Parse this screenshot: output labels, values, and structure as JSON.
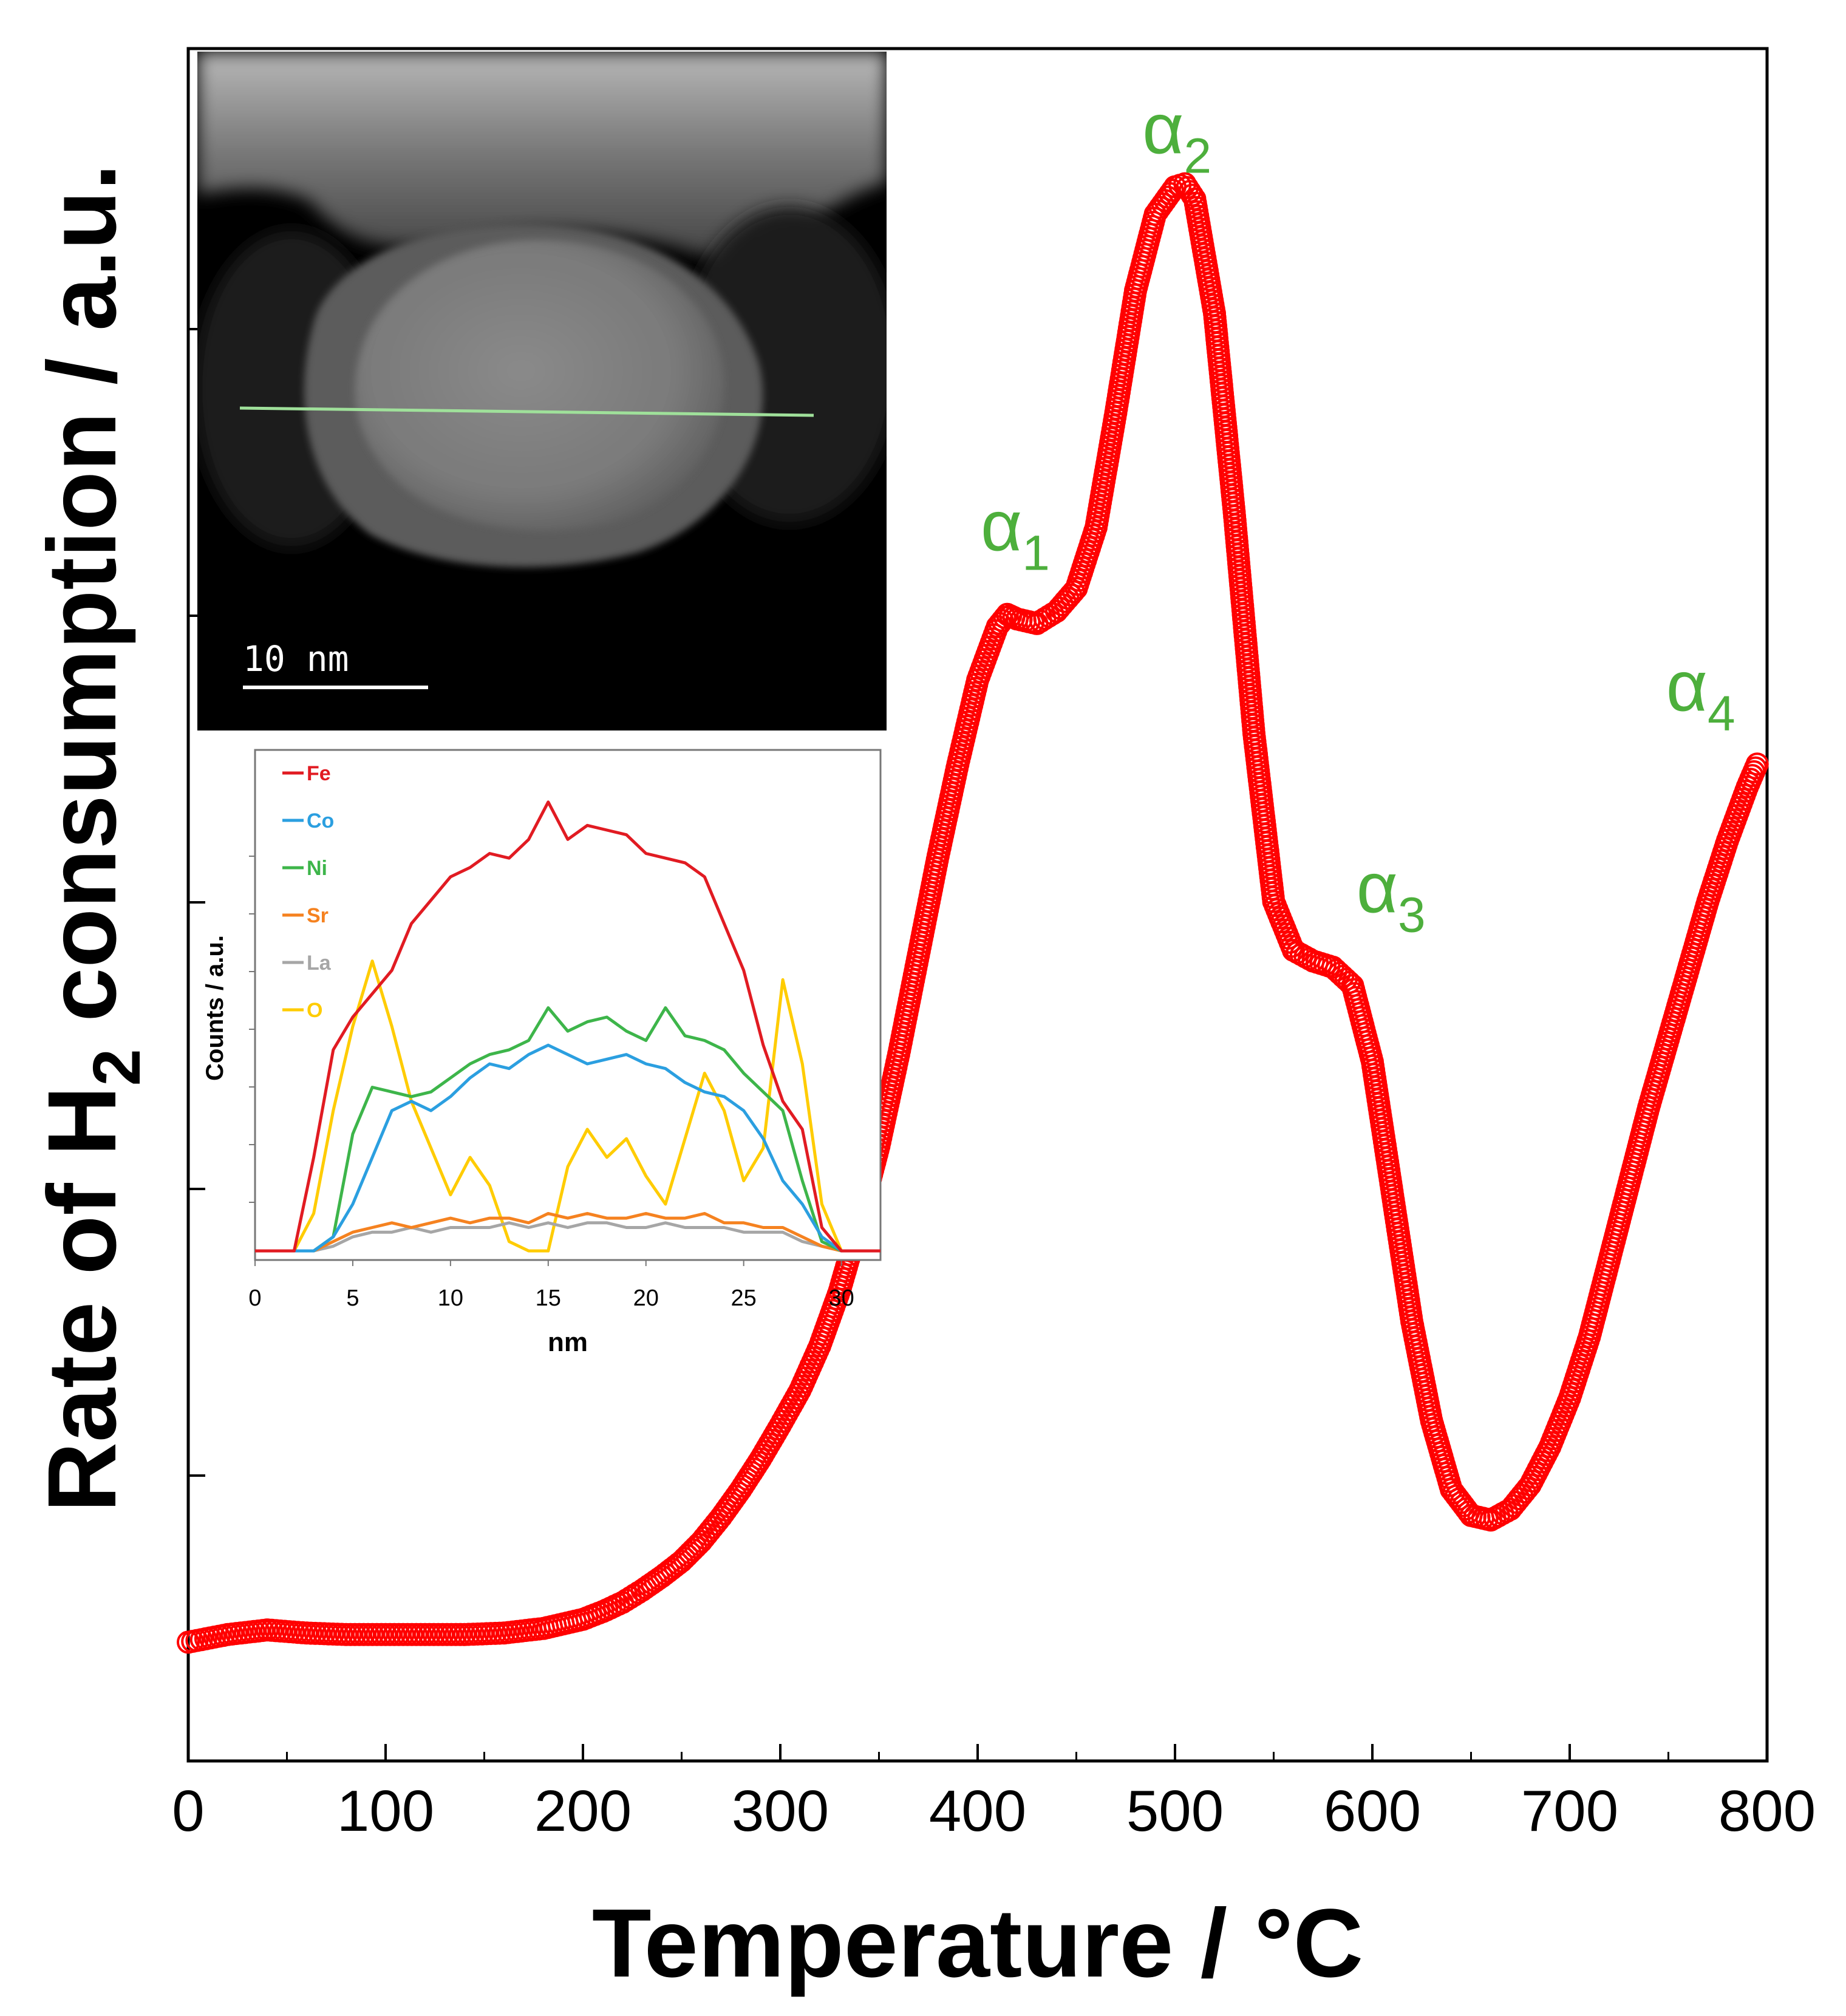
{
  "chart_data": [
    {
      "type": "scatter",
      "title": "",
      "xlabel": "Temperature / °C",
      "ylabel_parts": {
        "before": "Rate of H",
        "sub": "2",
        "after": " consumption / a.u."
      },
      "xlim": [
        0,
        800
      ],
      "ylim": [
        0,
        100
      ],
      "y_ticks_labeled": false,
      "x_ticks": [
        "0",
        "100",
        "200",
        "300",
        "400",
        "500",
        "600",
        "700",
        "800"
      ],
      "marker": "open-circle",
      "color": "#ff0000",
      "series": [
        {
          "x": [
            0,
            20,
            40,
            60,
            80,
            100,
            120,
            140,
            160,
            180,
            200,
            210,
            220,
            230,
            240,
            250,
            260,
            270,
            280,
            290,
            300,
            310,
            320,
            330,
            340,
            350,
            360,
            370,
            380,
            390,
            400,
            410,
            415,
            420,
            430,
            440,
            450,
            460,
            470,
            480,
            490,
            500,
            505,
            510,
            520,
            530,
            540,
            550,
            560,
            570,
            580,
            590,
            600,
            610,
            620,
            630,
            640,
            650,
            660,
            670,
            680,
            690,
            700,
            710,
            720,
            730,
            740,
            750,
            760,
            770,
            780,
            790,
            795
          ],
          "y": [
            4,
            4.5,
            4.8,
            4.6,
            4.5,
            4.5,
            4.5,
            4.5,
            4.6,
            4.9,
            5.5,
            6.0,
            6.6,
            7.4,
            8.3,
            9.3,
            10.6,
            12.2,
            14.0,
            16.0,
            18.2,
            20.5,
            23.4,
            27.0,
            31.5,
            36.5,
            42.5,
            49.0,
            55.5,
            61.5,
            67.0,
            70.5,
            71.3,
            71.0,
            70.7,
            71.5,
            73.0,
            77.0,
            84.5,
            92.5,
            97.5,
            99.3,
            99.5,
            98.5,
            91.0,
            78.0,
            63.5,
            52.5,
            49.3,
            48.6,
            48.2,
            47.0,
            42.0,
            33.5,
            25.0,
            18.5,
            14.0,
            12.3,
            12.0,
            12.7,
            14.3,
            16.8,
            20.0,
            24.0,
            29.0,
            34.0,
            39.0,
            43.5,
            48.0,
            52.5,
            56.5,
            60.0,
            61.5
          ]
        }
      ],
      "annotations": [
        {
          "label": "α",
          "sub": "1",
          "x": 420,
          "y": 72.5
        },
        {
          "label": "α",
          "sub": "2",
          "x": 505,
          "y": 100.5
        },
        {
          "label": "α",
          "sub": "3",
          "x": 595,
          "y": 50
        },
        {
          "label": "α",
          "sub": "4",
          "x": 795,
          "y": 63
        }
      ]
    },
    {
      "type": "line",
      "xlabel": "nm",
      "ylabel": "Counts / a.u.",
      "xlim": [
        0,
        32
      ],
      "ylim": [
        0,
        100
      ],
      "x_ticks": [
        "0",
        "5",
        "10",
        "15",
        "20",
        "25",
        "30"
      ],
      "legend_position": "top-left",
      "x": [
        0,
        2,
        3,
        4,
        5,
        6,
        7,
        8,
        9,
        10,
        11,
        12,
        13,
        14,
        15,
        16,
        17,
        18,
        19,
        20,
        21,
        22,
        23,
        24,
        25,
        26,
        27,
        28,
        29,
        30,
        31,
        32
      ],
      "series": [
        {
          "name": "Fe",
          "color": "#e11b22",
          "values": [
            0,
            0,
            20,
            43,
            50,
            55,
            60,
            70,
            75,
            80,
            82,
            85,
            84,
            88,
            96,
            88,
            91,
            90,
            89,
            85,
            84,
            83,
            80,
            70,
            60,
            44,
            32,
            26,
            5,
            0,
            0,
            0
          ]
        },
        {
          "name": "Co",
          "color": "#2b9fe0",
          "values": [
            0,
            0,
            0,
            3,
            10,
            20,
            30,
            32,
            30,
            33,
            37,
            40,
            39,
            42,
            44,
            42,
            40,
            41,
            42,
            40,
            39,
            36,
            34,
            33,
            30,
            24,
            15,
            10,
            3,
            0,
            0,
            0
          ]
        },
        {
          "name": "Ni",
          "color": "#3db54a",
          "values": [
            0,
            0,
            0,
            3,
            25,
            35,
            34,
            33,
            34,
            37,
            40,
            42,
            43,
            45,
            52,
            47,
            49,
            50,
            47,
            45,
            52,
            46,
            45,
            43,
            38,
            34,
            30,
            15,
            2,
            0,
            0,
            0
          ]
        },
        {
          "name": "Sr",
          "color": "#f58220",
          "values": [
            0,
            0,
            0,
            2,
            4,
            5,
            6,
            5,
            6,
            7,
            6,
            7,
            7,
            6,
            8,
            7,
            8,
            7,
            7,
            8,
            7,
            7,
            8,
            6,
            6,
            5,
            5,
            3,
            1,
            0,
            0,
            0
          ]
        },
        {
          "name": "La",
          "color": "#a6a6a6",
          "values": [
            0,
            0,
            0,
            1,
            3,
            4,
            4,
            5,
            4,
            5,
            5,
            5,
            6,
            5,
            6,
            5,
            6,
            6,
            5,
            5,
            6,
            5,
            5,
            5,
            4,
            4,
            4,
            2,
            1,
            0,
            0,
            0
          ]
        },
        {
          "name": "O",
          "color": "#ffcc00",
          "values": [
            0,
            0,
            8,
            30,
            48,
            62,
            48,
            32,
            22,
            12,
            20,
            14,
            2,
            0,
            0,
            18,
            26,
            20,
            24,
            16,
            10,
            24,
            38,
            30,
            15,
            22,
            58,
            40,
            10,
            0,
            0,
            0
          ]
        }
      ]
    }
  ],
  "micrograph": {
    "scale_bar_label": "10 nm"
  }
}
